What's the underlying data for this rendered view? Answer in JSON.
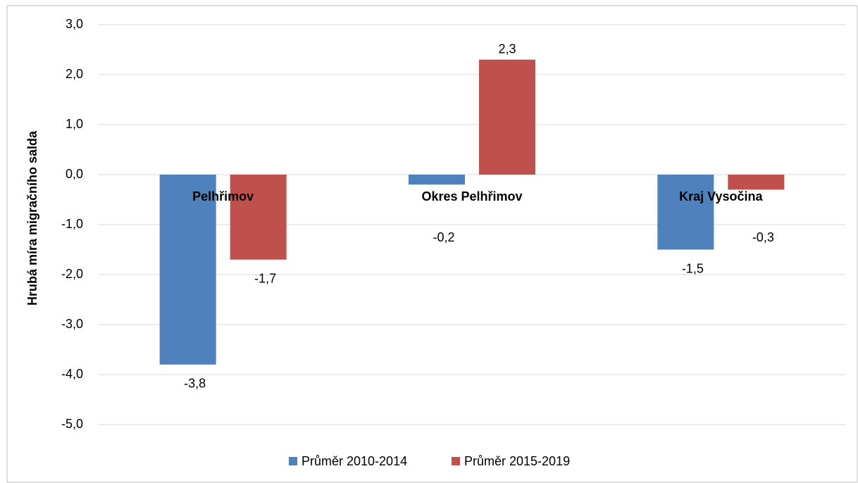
{
  "chart_data": {
    "type": "bar",
    "y_label": "Hrubá míra migračního salda",
    "categories": [
      "Pelhřimov",
      "Okres Pelhřimov",
      "Kraj Vysočina"
    ],
    "series": [
      {
        "name": "Průměr 2010-2014",
        "color": "#4f81bd",
        "values": [
          -3.8,
          -0.2,
          -1.5
        ],
        "value_labels": [
          "-3,8",
          "-0,2",
          "-1,5"
        ]
      },
      {
        "name": "Průměr 2015-2019",
        "color": "#c0504d",
        "values": [
          -1.7,
          2.3,
          -0.3
        ],
        "value_labels": [
          "-1,7",
          "2,3",
          "-0,3"
        ]
      }
    ],
    "ylim": [
      -5,
      3
    ],
    "yticks": [
      {
        "value": -5,
        "label": "-5,0"
      },
      {
        "value": -4,
        "label": "-4,0"
      },
      {
        "value": -3,
        "label": "-3,0"
      },
      {
        "value": -2,
        "label": "-2,0"
      },
      {
        "value": -1,
        "label": "-1,0"
      },
      {
        "value": 0,
        "label": "0,0"
      },
      {
        "value": 1,
        "label": "1,0"
      },
      {
        "value": 2,
        "label": "2,0"
      },
      {
        "value": 3,
        "label": "3,0"
      }
    ],
    "grid": true
  }
}
